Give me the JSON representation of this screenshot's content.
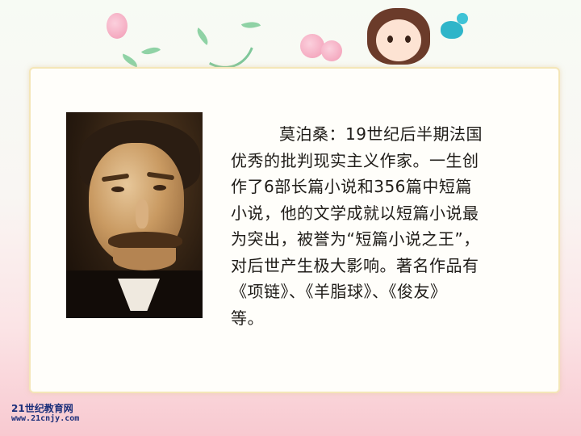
{
  "slide": {
    "lines": [
      "莫泊桑：19世纪后半期法国",
      "优秀的批判现实主义作家。一生创",
      "作了6部长篇小说和356篇中短篇",
      "小说，他的文学成就以短篇小说最",
      "为突出，被誉为“短篇小说之王”，",
      "对后世产生极大影响。著名作品有",
      "《项链》、《羊脂球》、《俊友》",
      "等。"
    ]
  },
  "watermark": {
    "name": "21世纪教育网",
    "url": "www.21cnjy.com"
  }
}
